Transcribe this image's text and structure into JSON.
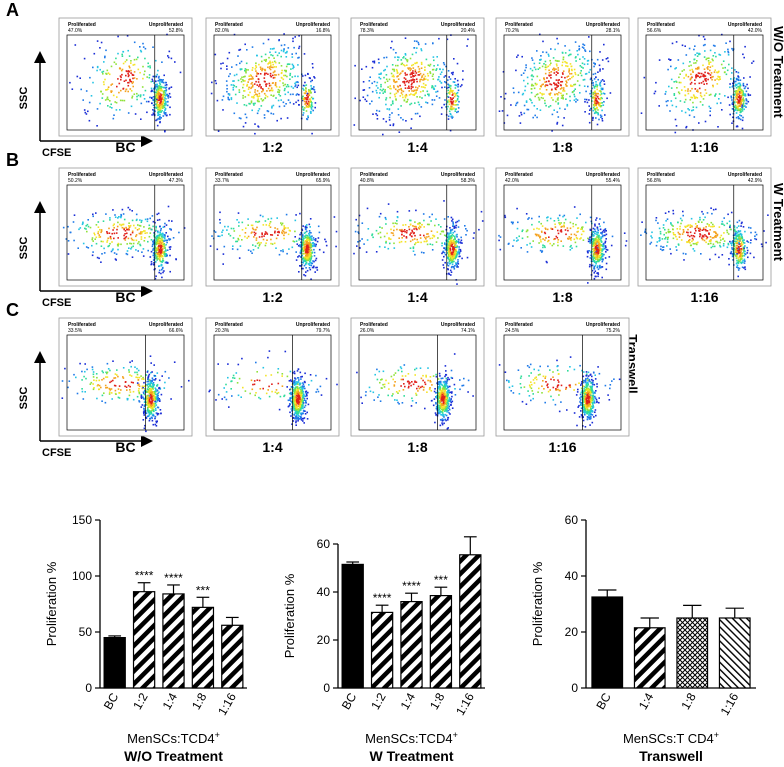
{
  "panel_labels": [
    "A",
    "B",
    "C"
  ],
  "flow_axes": {
    "y": "SSC",
    "x": "CFSE"
  },
  "gate_labels": {
    "left": "Proliferated",
    "right": "Unproliferated"
  },
  "flow_rows": [
    {
      "side_label": "W/O Treatment",
      "samples": [
        {
          "condition": "BC",
          "proliferated": "47.0%",
          "unproliferated": "52.8%"
        },
        {
          "condition": "1:2",
          "proliferated": "82.0%",
          "unproliferated": "16.8%"
        },
        {
          "condition": "1:4",
          "proliferated": "78.3%",
          "unproliferated": "20.4%"
        },
        {
          "condition": "1:8",
          "proliferated": "70.2%",
          "unproliferated": "28.1%"
        },
        {
          "condition": "1:16",
          "proliferated": "56.6%",
          "unproliferated": "42.0%"
        }
      ]
    },
    {
      "side_label": "W Treatment",
      "samples": [
        {
          "condition": "BC",
          "proliferated": "50.2%",
          "unproliferated": "47.3%"
        },
        {
          "condition": "1:2",
          "proliferated": "33.7%",
          "unproliferated": "65.9%"
        },
        {
          "condition": "1:4",
          "proliferated": "40.8%",
          "unproliferated": "58.3%"
        },
        {
          "condition": "1:8",
          "proliferated": "42.0%",
          "unproliferated": "55.4%"
        },
        {
          "condition": "1:16",
          "proliferated": "56.8%",
          "unproliferated": "42.9%"
        }
      ]
    },
    {
      "side_label": "Transwell",
      "samples": [
        {
          "condition": "BC",
          "proliferated": "33.5%",
          "unproliferated": "66.6%"
        },
        {
          "condition": "1:4",
          "proliferated": "20.3%",
          "unproliferated": "79.7%"
        },
        {
          "condition": "1:8",
          "proliferated": "26.0%",
          "unproliferated": "74.1%"
        },
        {
          "condition": "1:16",
          "proliferated": "24.5%",
          "unproliferated": "75.2%"
        }
      ]
    }
  ],
  "colors": {
    "black": "#000000",
    "density_low": "#1a2dd6",
    "density_high": "#e0201b"
  },
  "chart_data": [
    {
      "type": "bar",
      "title": "W/O Treatment",
      "ylabel": "Proliferation %",
      "xlabel": "MenSCs:TCD4",
      "xlabel_sup": "+",
      "ylim": [
        0,
        150
      ],
      "yticks": [
        0,
        50,
        100,
        150
      ],
      "categories": [
        "BC",
        "1:2",
        "1:4",
        "1:8",
        "1:16"
      ],
      "values": [
        45,
        86,
        84,
        72,
        56
      ],
      "errors": [
        1.5,
        8,
        8,
        9,
        7
      ],
      "patterns": [
        "solid",
        "diag",
        "diag",
        "diag",
        "diag"
      ],
      "significance": [
        "",
        "****",
        "****",
        "***",
        ""
      ]
    },
    {
      "type": "bar",
      "title": "W Treatment",
      "ylabel": "Proliferation %",
      "xlabel": "MenSCs:TCD4",
      "xlabel_sup": "+",
      "ylim": [
        0,
        70
      ],
      "yticks": [
        0,
        20,
        40,
        60
      ],
      "categories": [
        "BC",
        "1:2",
        "1:4",
        "1:8",
        "1:16"
      ],
      "values": [
        51.5,
        31.5,
        36,
        38.5,
        55.5
      ],
      "errors": [
        1,
        3,
        3.5,
        3.5,
        7.5
      ],
      "patterns": [
        "solid",
        "diag",
        "diag",
        "diag",
        "diag"
      ],
      "significance": [
        "",
        "****",
        "****",
        "***",
        ""
      ]
    },
    {
      "type": "bar",
      "title": "Transwell",
      "ylabel": "Proliferation %",
      "xlabel": "MenSCs:T CD4",
      "xlabel_sup": "+",
      "ylim": [
        0,
        60
      ],
      "yticks": [
        0,
        20,
        40,
        60
      ],
      "categories": [
        "BC",
        "1:4",
        "1:8",
        "1:16"
      ],
      "values": [
        32.5,
        21.5,
        25,
        25
      ],
      "errors": [
        2.5,
        3.5,
        4.5,
        3.5
      ],
      "patterns": [
        "solid",
        "diag",
        "cross",
        "fine"
      ],
      "significance": [
        "",
        "",
        "",
        ""
      ]
    }
  ]
}
